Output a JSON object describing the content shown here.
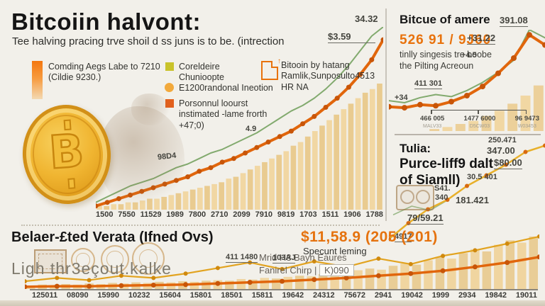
{
  "colors": {
    "background": "#f2f0ea",
    "accent_orange": "#e8720c",
    "line_orange": "#e1660c",
    "marker_orange": "#c85508",
    "line_green": "#82aa6e",
    "line_yellow": "#e2a31f",
    "bar_tan": "#f1d7a3",
    "bar_tan_alt": "#e9cb90",
    "legend_yellow": "#c9c32b",
    "legend_circle": "#f2a93b",
    "legend_dark_orange": "#e2601c",
    "coin_gold": "#f0b531"
  },
  "header": {
    "title": "Bitcoiin halvont:",
    "subtitle": "Tee halving pracing trve shoil d ss juns is to be. (intrection"
  },
  "legend": {
    "item1_line1": "Comding Aegs Labe to 7210",
    "item1_line2": "(Cildie 9230.)",
    "item2": "Coreldeire Chunioopte",
    "item3": "E1200randonal Ineotion",
    "item4": "Porsonnul loourst instimated -lame frorth +47;0)",
    "item5": "Bitooin by hatang Ramlik,Sunposulto4513 HR NA"
  },
  "coin": {
    "symbol": "B"
  },
  "right_top": {
    "heading": "Bitcue of amere",
    "highlight": "526 91 / 9J60",
    "body": "tinlly singesis tre boobe the Pilting Acreoun",
    "ann_peak": "391.08",
    "ann_delta1": "+31.22",
    "ann_delta2": "+4.5",
    "ann_delta3": "+34",
    "ann_val": "411 301",
    "bracket": [
      {
        "label": "466 005",
        "sub": "MALV33"
      },
      {
        "label": "1477 6000",
        "sub": "D5CW03"
      },
      {
        "label": "96 9473",
        "sub": "W03453"
      }
    ]
  },
  "right_mid": {
    "heading1": "Tulia:",
    "heading2": "Purce-liff9 dalt",
    "heading3": "of Siamll)",
    "val1": "250.471",
    "val2": "347.00",
    "val3": "$80.00",
    "val4": "30.5 401",
    "val5": "181.421",
    "val6": "79/59.21",
    "val7": "4917",
    "cam_val1": "S41.",
    "cam_val2": "340"
  },
  "bottom": {
    "heading": "Belaer-£ted Verata (Ifned Ovs)",
    "watermark": "Ligh thr3eçout.kalke",
    "note_line1": "Mrid H3 Bayn Eaures",
    "note_line2": "Fanirel Chirp |",
    "note_box": "K)090",
    "highlight": "$11,58.9 (205 (201)",
    "sub": "Specunt leming",
    "ann1": "411 1480",
    "ann2": "103AJ"
  },
  "chart_data": [
    {
      "id": "main-price-chart",
      "type": "bar+line",
      "title": "Bitcoiin halvont main price history",
      "annotations": [
        "98D4",
        "4.9",
        "$3.59",
        "34.32"
      ],
      "x_labels": [
        "1500",
        "7550",
        "11529",
        "1989",
        "7800",
        "2710",
        "2099",
        "7910",
        "9819",
        "1703",
        "1511",
        "1906",
        "1788"
      ],
      "bars": {
        "color": "#f1d7a3",
        "color_alt": "#e9cb90",
        "values": [
          2,
          2,
          3,
          3,
          4,
          4,
          5,
          6,
          6,
          7,
          8,
          9,
          10,
          11,
          12,
          13,
          14,
          15,
          17,
          18,
          20,
          22,
          24,
          26,
          28,
          30,
          32,
          35,
          37,
          40,
          43,
          46,
          49,
          52,
          55,
          58,
          61,
          64,
          66,
          69
        ]
      },
      "series": [
        {
          "name": "green-trend",
          "color": "#82aa6e",
          "width": 2,
          "values": [
            4,
            7,
            10,
            13,
            15,
            17,
            20,
            23,
            25,
            28,
            31,
            33,
            36,
            39,
            42,
            46,
            50,
            54,
            57,
            61,
            66,
            72,
            79,
            87,
            95,
            100
          ]
        },
        {
          "name": "orange-price",
          "color": "#e1660c",
          "width": 4,
          "markers": true,
          "marker_color": "#c85508",
          "marker_r": 3.5,
          "values": [
            2,
            4,
            6,
            8,
            10,
            12,
            14,
            16,
            18,
            21,
            23,
            26,
            28,
            31,
            34,
            37,
            40,
            43,
            47,
            51,
            56,
            61,
            67,
            74,
            82,
            93
          ]
        }
      ]
    },
    {
      "id": "right-top-mini-chart",
      "type": "bar+line",
      "title": "Bitcue of amere mini chart",
      "annotations": [
        "391.08",
        "+31.22",
        "+4.5",
        "+34",
        "411 301"
      ],
      "bars": {
        "color": "#f1d7a3",
        "color_alt": "#ecd09a",
        "values": [
          0,
          0,
          0,
          2,
          4,
          7,
          10,
          15,
          20,
          27,
          35,
          45
        ]
      },
      "series": [
        {
          "name": "green-trend",
          "color": "#82aa6e",
          "width": 2,
          "values": [
            30,
            28,
            33,
            36,
            34,
            40,
            48,
            58,
            70,
            100,
            92
          ]
        },
        {
          "name": "orange-price",
          "color": "#e1660c",
          "width": 4,
          "markers": true,
          "marker_color": "#c85508",
          "marker_r": 4,
          "values": [
            24,
            23,
            26,
            25,
            29,
            35,
            44,
            57,
            72,
            95,
            85
          ]
        }
      ]
    },
    {
      "id": "right-cascade-chart",
      "type": "line",
      "title": "Purce-liff9 dalt of Siamll cascade",
      "annotations": [
        "250.471",
        "347.00",
        "$80.00",
        "30.5 401",
        "181.421",
        "79/59.21",
        "4917",
        "S41. 340"
      ],
      "series": [
        {
          "name": "green-short",
          "color": "#9cba8a",
          "width": 1.6,
          "xspan": [
            0.03,
            0.38
          ],
          "values": [
            28,
            36,
            32,
            42
          ]
        },
        {
          "name": "yellow-cascade",
          "color": "#e8b02a",
          "width": 2.5,
          "markers": true,
          "marker_color": "#d86a10",
          "marker_r": 3,
          "values": [
            5,
            20,
            33,
            42,
            55,
            65,
            75,
            87,
            93
          ]
        }
      ]
    },
    {
      "id": "bottom-wide-chart",
      "type": "bar+line",
      "title": "Belaer-£ted Verata bottom chart",
      "annotations": [
        "411 1480",
        "103AJ"
      ],
      "x_labels": [
        "125011",
        "08090",
        "15990",
        "10232",
        "15604",
        "15801",
        "18501",
        "15811",
        "19642",
        "24312",
        "75672",
        "2941",
        "19042",
        "1999",
        "2934",
        "19842",
        "19011"
      ],
      "bars": {
        "color": "#f0d5a0",
        "color_alt": "#e9cd96",
        "values": [
          6,
          8,
          7,
          9,
          8,
          10,
          9,
          11,
          10,
          12,
          11,
          13,
          12,
          14,
          13,
          15,
          16,
          15,
          18,
          17,
          20,
          19,
          22,
          24,
          23,
          27,
          30,
          28,
          34,
          37,
          35,
          42,
          46,
          44,
          52,
          58,
          55,
          65,
          72,
          68,
          80,
          88,
          84,
          95
        ]
      },
      "series": [
        {
          "name": "yellow-line",
          "color": "#e2a31f",
          "width": 2.2,
          "markers": true,
          "marker_color": "#d0890e",
          "marker_r": 3,
          "values": [
            14,
            20,
            16,
            24,
            20,
            28,
            38,
            48,
            36,
            50,
            40,
            55,
            45,
            60,
            70,
            82,
            95
          ]
        },
        {
          "name": "orange-line",
          "color": "#e1660c",
          "width": 3.5,
          "markers": true,
          "marker_color": "#c85508",
          "marker_r": 3.5,
          "values": [
            4,
            5,
            5,
            6,
            7,
            8,
            10,
            12,
            14,
            17,
            20,
            24,
            28,
            33,
            40,
            48,
            58
          ]
        }
      ]
    }
  ]
}
